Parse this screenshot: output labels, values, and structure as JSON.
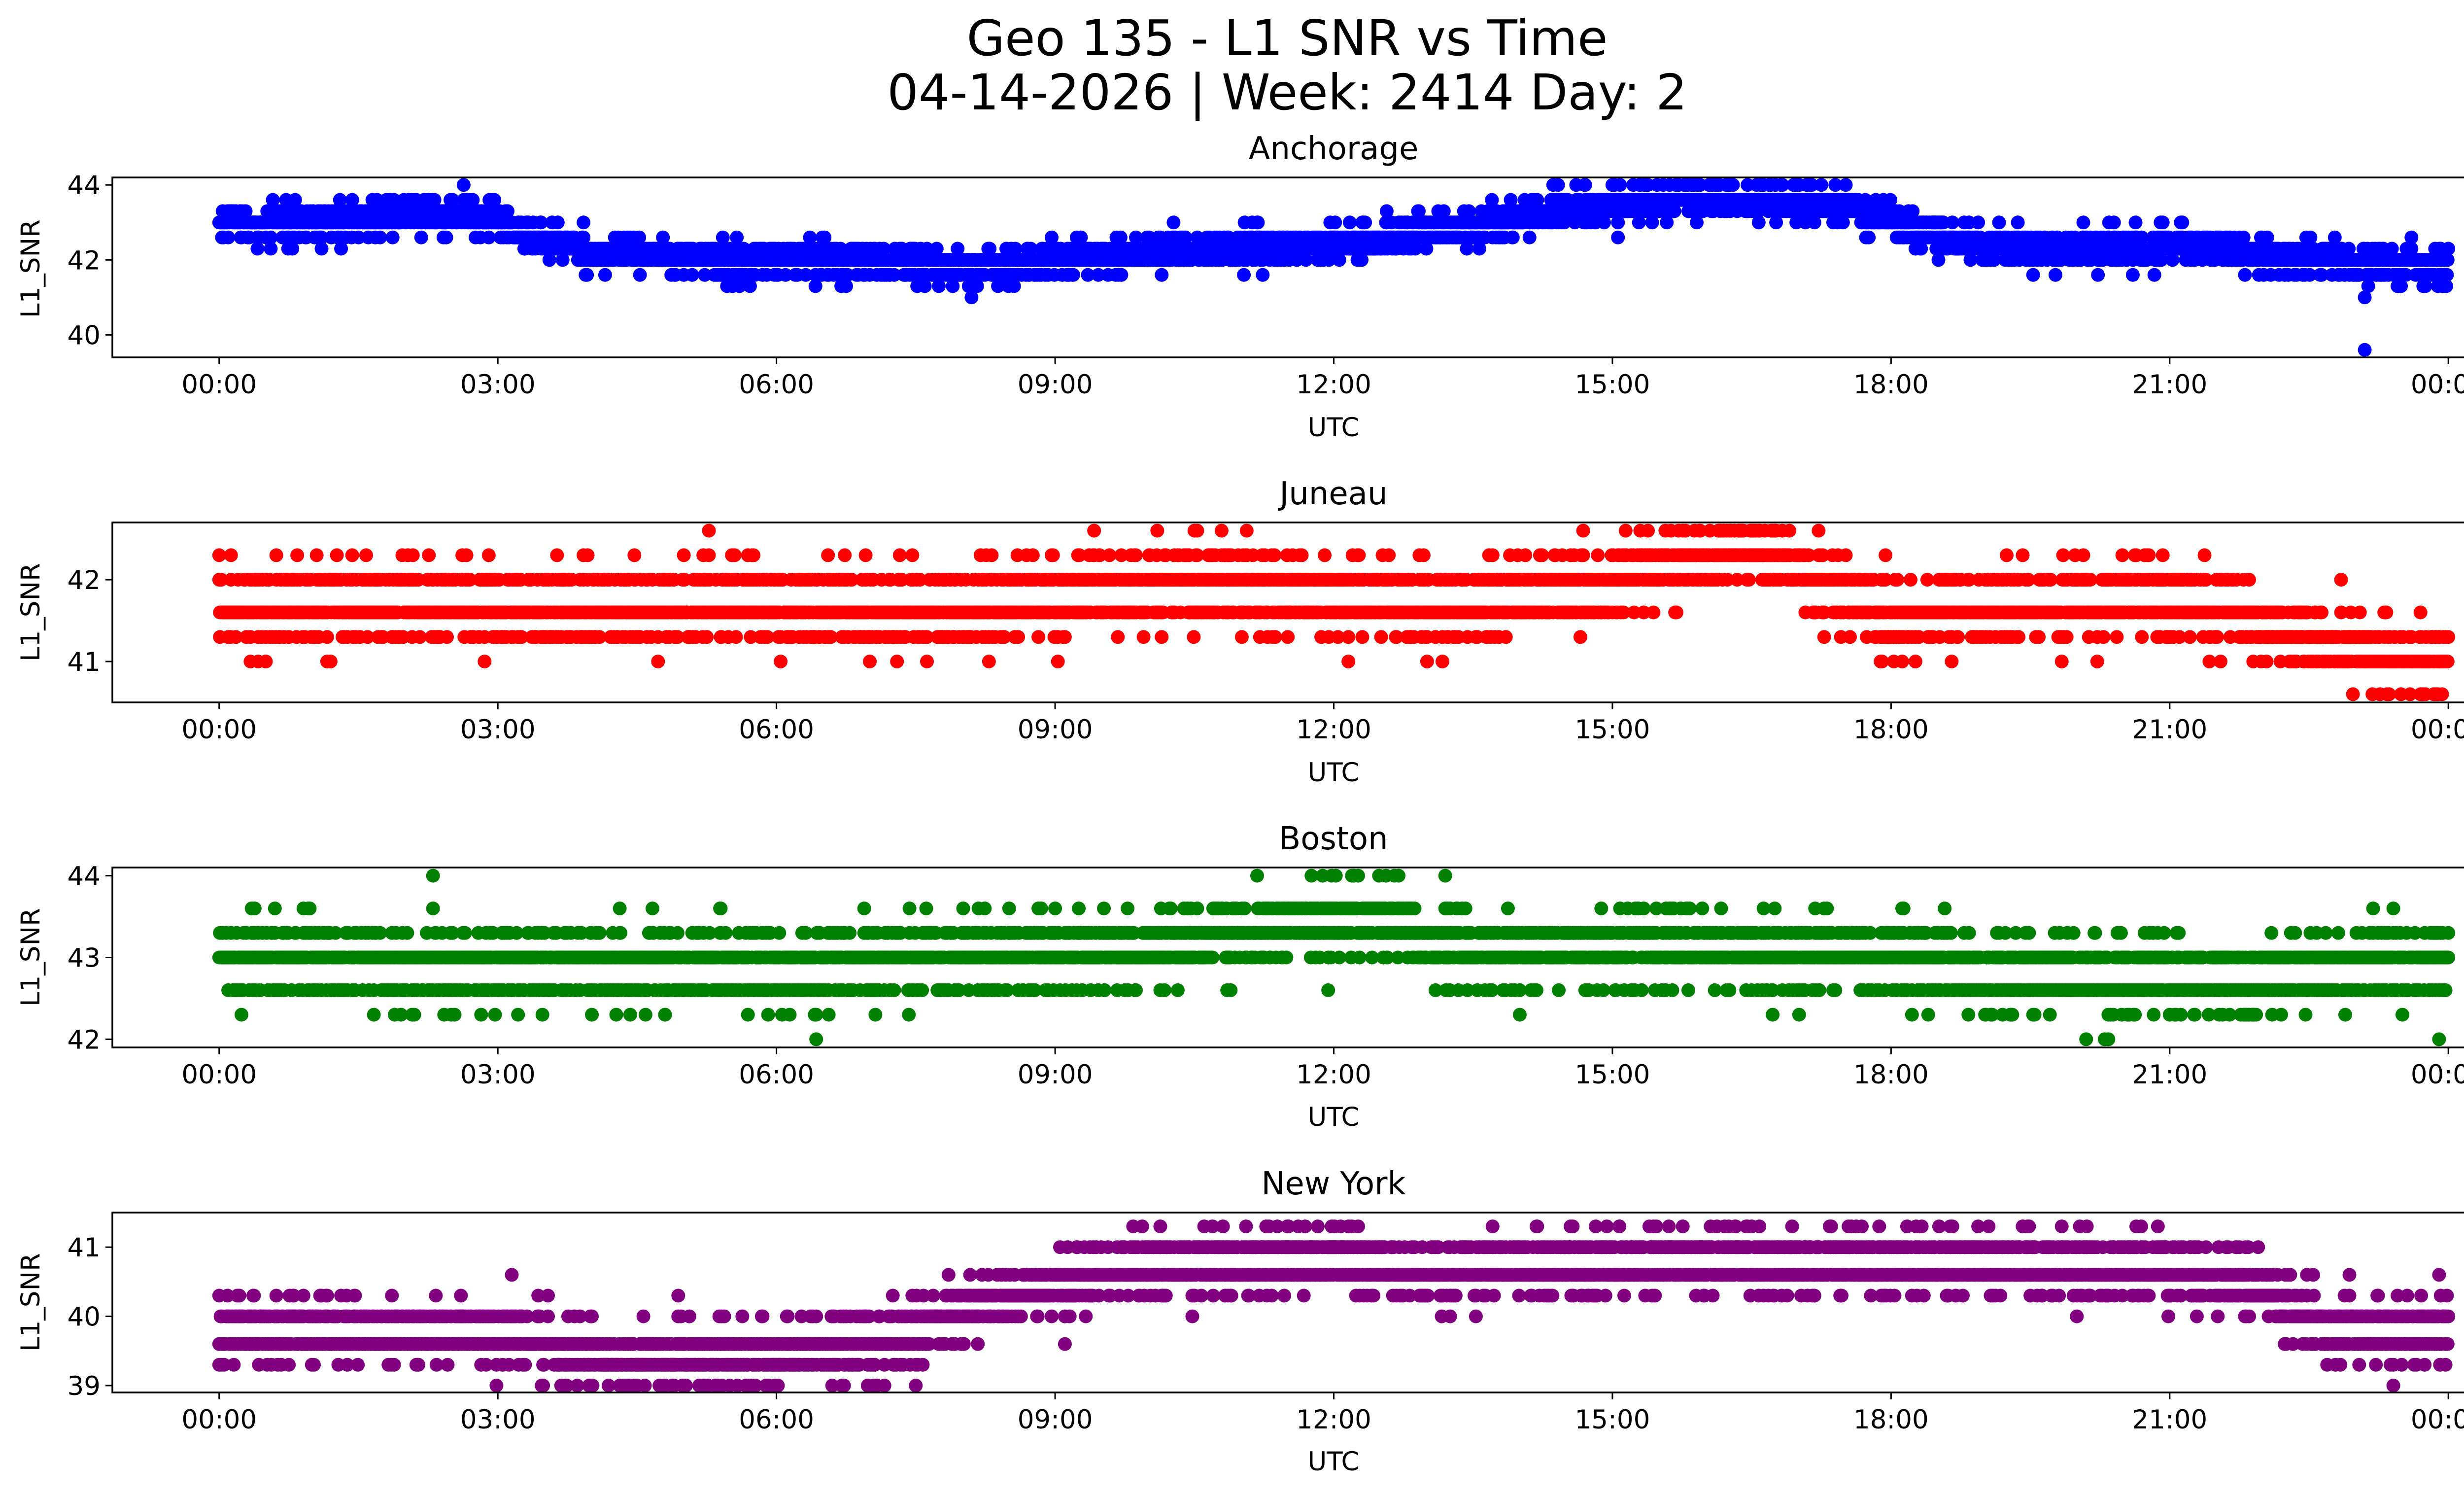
{
  "figure": {
    "title_line1": "Geo 135 - L1 SNR vs Time",
    "title_line2": "04-14-2026 | Week: 2414 Day: 2"
  },
  "chart_data": [
    {
      "type": "scatter",
      "title": "Anchorage",
      "xlabel": "UTC",
      "ylabel": "L1_SNR",
      "color": "#0000ff",
      "xlim_hours": [
        -1.15,
        25.15
      ],
      "ylim": [
        39.4,
        44.2
      ],
      "yticks": [
        40,
        42,
        44
      ],
      "xticks": [
        "00:00",
        "03:00",
        "06:00",
        "09:00",
        "12:00",
        "15:00",
        "18:00",
        "21:00",
        "00:00"
      ],
      "xtick_hours": [
        0,
        3,
        6,
        9,
        12,
        15,
        18,
        21,
        24
      ],
      "levels": [
        39.6,
        41.0,
        41.3,
        41.6,
        42.0,
        42.3,
        42.6,
        43.0,
        43.3,
        43.6,
        44.0
      ],
      "trend": [
        [
          0.0,
          43.0
        ],
        [
          1.3,
          43.0
        ],
        [
          2.0,
          43.25
        ],
        [
          2.8,
          43.2
        ],
        [
          3.4,
          42.6
        ],
        [
          4.0,
          42.2
        ],
        [
          5.5,
          42.0
        ],
        [
          7.0,
          42.0
        ],
        [
          8.0,
          41.8
        ],
        [
          9.0,
          42.0
        ],
        [
          10.5,
          42.3
        ],
        [
          12.0,
          42.4
        ],
        [
          13.3,
          42.8
        ],
        [
          14.3,
          43.3
        ],
        [
          15.5,
          43.6
        ],
        [
          16.5,
          43.7
        ],
        [
          17.6,
          43.4
        ],
        [
          18.3,
          42.8
        ],
        [
          19.0,
          42.3
        ],
        [
          21.5,
          42.3
        ],
        [
          22.5,
          42.0
        ],
        [
          23.2,
          41.9
        ],
        [
          24.0,
          41.8
        ]
      ],
      "outliers": [
        [
          23.1,
          39.6
        ],
        [
          23.1,
          41.0
        ],
        [
          8.1,
          41.0
        ],
        [
          14.7,
          44.0
        ],
        [
          15.0,
          44.0
        ],
        [
          16.6,
          44.0
        ],
        [
          17.0,
          44.0
        ],
        [
          1.3,
          43.6
        ],
        [
          1.7,
          43.6
        ],
        [
          23.3,
          42.3
        ],
        [
          23.6,
          42.3
        ]
      ]
    },
    {
      "type": "scatter",
      "title": "Juneau",
      "xlabel": "UTC",
      "ylabel": "L1_SNR",
      "color": "#ff0000",
      "xlim_hours": [
        -1.15,
        25.15
      ],
      "ylim": [
        40.5,
        42.7
      ],
      "yticks": [
        41,
        42
      ],
      "xticks": [
        "00:00",
        "03:00",
        "06:00",
        "09:00",
        "12:00",
        "15:00",
        "18:00",
        "21:00",
        "00:00"
      ],
      "xtick_hours": [
        0,
        3,
        6,
        9,
        12,
        15,
        18,
        21,
        24
      ],
      "levels": [
        40.6,
        41.0,
        41.3,
        41.6,
        42.0,
        42.3,
        42.6
      ],
      "trend": [
        [
          0.0,
          41.7
        ],
        [
          2.0,
          41.7
        ],
        [
          4.0,
          41.65
        ],
        [
          6.0,
          41.7
        ],
        [
          7.5,
          41.55
        ],
        [
          9.0,
          41.8
        ],
        [
          10.5,
          41.9
        ],
        [
          12.0,
          41.8
        ],
        [
          13.0,
          41.65
        ],
        [
          14.0,
          41.8
        ],
        [
          15.5,
          42.1
        ],
        [
          16.5,
          42.35
        ],
        [
          17.2,
          42.0
        ],
        [
          18.0,
          41.5
        ],
        [
          19.0,
          41.7
        ],
        [
          21.0,
          41.7
        ],
        [
          22.0,
          41.5
        ],
        [
          23.0,
          41.1
        ],
        [
          24.0,
          41.0
        ]
      ],
      "outliers": [
        [
          10.1,
          42.6
        ],
        [
          10.5,
          42.6
        ],
        [
          23.7,
          41.6
        ],
        [
          0.5,
          41.0
        ],
        [
          1.2,
          41.0
        ]
      ]
    },
    {
      "type": "scatter",
      "title": "Boston",
      "xlabel": "UTC",
      "ylabel": "L1_SNR",
      "color": "#008000",
      "xlim_hours": [
        -1.15,
        25.15
      ],
      "ylim": [
        41.9,
        44.1
      ],
      "yticks": [
        42,
        43,
        44
      ],
      "xticks": [
        "00:00",
        "03:00",
        "06:00",
        "09:00",
        "12:00",
        "15:00",
        "18:00",
        "21:00",
        "00:00"
      ],
      "xtick_hours": [
        0,
        3,
        6,
        9,
        12,
        15,
        18,
        21,
        24
      ],
      "levels": [
        42.0,
        42.3,
        42.6,
        43.0,
        43.3,
        43.6,
        44.0
      ],
      "trend": [
        [
          0.0,
          43.0
        ],
        [
          3.0,
          42.9
        ],
        [
          6.0,
          42.9
        ],
        [
          8.5,
          43.0
        ],
        [
          10.0,
          43.1
        ],
        [
          11.5,
          43.4
        ],
        [
          12.5,
          43.5
        ],
        [
          13.2,
          43.1
        ],
        [
          15.0,
          43.1
        ],
        [
          18.0,
          43.0
        ],
        [
          19.5,
          42.8
        ],
        [
          20.5,
          42.7
        ],
        [
          22.0,
          42.8
        ],
        [
          24.0,
          43.0
        ]
      ],
      "outliers": [
        [
          0.35,
          43.6
        ],
        [
          2.1,
          42.3
        ],
        [
          4.8,
          42.3
        ],
        [
          20.1,
          42.0
        ],
        [
          20.3,
          42.0
        ],
        [
          23.9,
          42.0
        ],
        [
          18.4,
          42.3
        ],
        [
          13.25,
          42.6
        ]
      ]
    },
    {
      "type": "scatter",
      "title": "New York",
      "xlabel": "UTC",
      "ylabel": "L1_SNR",
      "color": "#800080",
      "xlim_hours": [
        -1.15,
        25.15
      ],
      "ylim": [
        38.9,
        41.5
      ],
      "yticks": [
        39,
        40,
        41
      ],
      "xticks": [
        "00:00",
        "03:00",
        "06:00",
        "09:00",
        "12:00",
        "15:00",
        "18:00",
        "21:00",
        "00:00"
      ],
      "xtick_hours": [
        0,
        3,
        6,
        9,
        12,
        15,
        18,
        21,
        24
      ],
      "levels": [
        39.0,
        39.3,
        39.6,
        40.0,
        40.3,
        40.6,
        41.0,
        41.3
      ],
      "trend": [
        [
          0.0,
          39.8
        ],
        [
          3.0,
          39.75
        ],
        [
          4.0,
          39.4
        ],
        [
          6.0,
          39.4
        ],
        [
          7.3,
          39.6
        ],
        [
          8.0,
          40.1
        ],
        [
          9.0,
          40.45
        ],
        [
          10.5,
          40.8
        ],
        [
          12.0,
          40.85
        ],
        [
          13.0,
          40.6
        ],
        [
          14.5,
          40.75
        ],
        [
          16.0,
          40.8
        ],
        [
          19.0,
          40.75
        ],
        [
          21.0,
          40.7
        ],
        [
          22.0,
          40.4
        ],
        [
          22.6,
          39.9
        ],
        [
          23.3,
          39.7
        ],
        [
          24.0,
          39.9
        ]
      ],
      "outliers": [
        [
          0.0,
          40.3
        ],
        [
          0.0,
          39.3
        ],
        [
          3.15,
          40.6
        ],
        [
          23.9,
          40.6
        ],
        [
          20.0,
          40.0
        ],
        [
          11.5,
          41.3
        ],
        [
          16.5,
          41.3
        ]
      ]
    }
  ]
}
